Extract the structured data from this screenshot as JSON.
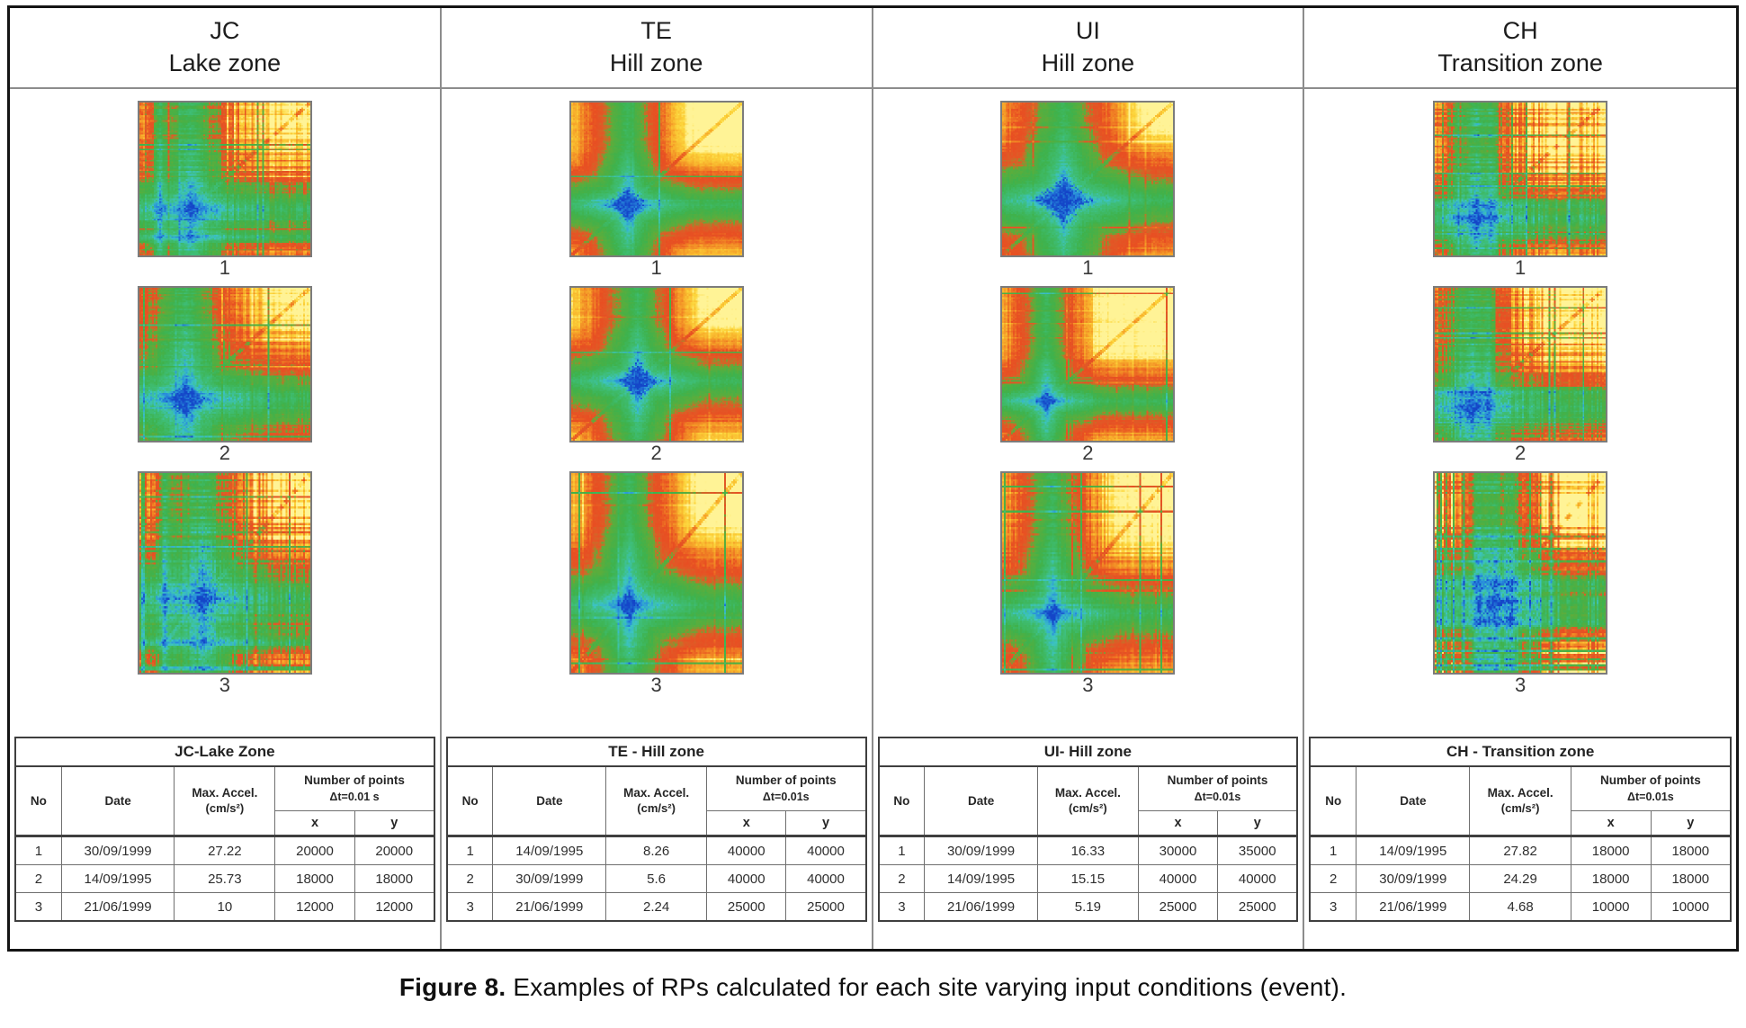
{
  "figure": {
    "caption_label": "Figure 8.",
    "caption_text": " Examples of RPs calculated for each site varying input conditions (event).",
    "columns": [
      {
        "code": "JC",
        "zone": "Lake zone",
        "plots": [
          {
            "label": "1",
            "c": 0.3,
            "w": 0.48,
            "blob": 0.05,
            "stripes": 0.55,
            "seed": 11,
            "events": [
              0.12
            ]
          },
          {
            "label": "2",
            "c": 0.27,
            "w": 0.55,
            "blob": 0.11,
            "stripes": 0.4,
            "seed": 12,
            "events": []
          },
          {
            "label": "3",
            "c": 0.37,
            "w": 0.5,
            "blob": 0.06,
            "stripes": 0.75,
            "seed": 13,
            "events": [
              0.15
            ]
          }
        ],
        "table": {
          "title": "JC-Lake Zone",
          "headers": {
            "no": "No",
            "date": "Date",
            "accel1": "Max. Accel.",
            "accel2": "(cm/s²)",
            "points1": "Number of points",
            "points2": "Δt=0.01 s",
            "x": "x",
            "y": "y"
          },
          "rows": [
            {
              "no": "1",
              "date": "30/09/1999",
              "accel": "27.22",
              "x": "20000",
              "y": "20000"
            },
            {
              "no": "2",
              "date": "14/09/1995",
              "accel": "25.73",
              "x": "18000",
              "y": "18000"
            },
            {
              "no": "3",
              "date": "21/06/1999",
              "accel": "10",
              "x": "12000",
              "y": "12000"
            }
          ]
        }
      },
      {
        "code": "TE",
        "zone": "Hill zone",
        "plots": [
          {
            "label": "1",
            "c": 0.33,
            "w": 0.4,
            "blob": 0.11,
            "stripes": 0.15,
            "seed": 21,
            "events": []
          },
          {
            "label": "2",
            "c": 0.39,
            "w": 0.42,
            "blob": 0.12,
            "stripes": 0.2,
            "seed": 22,
            "events": []
          },
          {
            "label": "3",
            "c": 0.34,
            "w": 0.42,
            "blob": 0.07,
            "stripes": 0.18,
            "seed": 23,
            "events": []
          }
        ],
        "table": {
          "title": "TE - Hill zone",
          "headers": {
            "no": "No",
            "date": "Date",
            "accel1": "Max. Accel.",
            "accel2": "(cm/s²)",
            "points1": "Number of points",
            "points2": "Δt=0.01s",
            "x": "x",
            "y": "y"
          },
          "rows": [
            {
              "no": "1",
              "date": "14/09/1995",
              "accel": "8.26",
              "x": "40000",
              "y": "40000"
            },
            {
              "no": "2",
              "date": "30/09/1999",
              "accel": "5.6",
              "x": "40000",
              "y": "40000"
            },
            {
              "no": "3",
              "date": "21/06/1999",
              "accel": "2.24",
              "x": "25000",
              "y": "25000"
            }
          ]
        }
      },
      {
        "code": "UI",
        "zone": "Hill zone",
        "plots": [
          {
            "label": "1",
            "c": 0.36,
            "w": 0.52,
            "blob": 0.15,
            "stripes": 0.18,
            "seed": 31,
            "events": []
          },
          {
            "label": "2",
            "c": 0.26,
            "w": 0.33,
            "blob": 0.06,
            "stripes": 0.22,
            "seed": 32,
            "events": []
          },
          {
            "label": "3",
            "c": 0.3,
            "w": 0.4,
            "blob": 0.06,
            "stripes": 0.28,
            "seed": 33,
            "events": []
          }
        ],
        "table": {
          "title": "UI- Hill zone",
          "headers": {
            "no": "No",
            "date": "Date",
            "accel1": "Max. Accel.",
            "accel2": "(cm/s²)",
            "points1": "Number of points",
            "points2": "Δt=0.01s",
            "x": "x",
            "y": "y"
          },
          "rows": [
            {
              "no": "1",
              "date": "30/09/1999",
              "accel": "16.33",
              "x": "30000",
              "y": "35000"
            },
            {
              "no": "2",
              "date": "14/09/1995",
              "accel": "15.15",
              "x": "40000",
              "y": "40000"
            },
            {
              "no": "3",
              "date": "21/06/1999",
              "accel": "5.19",
              "x": "25000",
              "y": "25000"
            }
          ]
        }
      },
      {
        "code": "CH",
        "zone": "Transition zone",
        "plots": [
          {
            "label": "1",
            "c": 0.24,
            "w": 0.42,
            "blob": 0.05,
            "stripes": 0.85,
            "seed": 41,
            "events": [
              0.33
            ]
          },
          {
            "label": "2",
            "c": 0.22,
            "w": 0.45,
            "blob": 0.06,
            "stripes": 0.7,
            "seed": 42,
            "events": [
              0.31
            ]
          },
          {
            "label": "3",
            "c": 0.35,
            "w": 0.48,
            "blob": 0.06,
            "stripes": 0.95,
            "seed": 43,
            "events": [
              0.26,
              0.45
            ]
          }
        ],
        "table": {
          "title": "CH - Transition zone",
          "headers": {
            "no": "No",
            "date": "Date",
            "accel1": "Max. Accel.",
            "accel2": "(cm/s²)",
            "points1": "Number of points",
            "points2": "Δt=0.01s",
            "x": "x",
            "y": "y"
          },
          "rows": [
            {
              "no": "1",
              "date": "14/09/1995",
              "accel": "27.82",
              "x": "18000",
              "y": "18000"
            },
            {
              "no": "2",
              "date": "30/09/1999",
              "accel": "24.29",
              "x": "18000",
              "y": "18000"
            },
            {
              "no": "3",
              "date": "21/06/1999",
              "accel": "4.68",
              "x": "10000",
              "y": "10000"
            }
          ]
        }
      }
    ]
  },
  "rp_colormap": [
    [
      0.0,
      "#1446c8"
    ],
    [
      0.045,
      "#288cdc"
    ],
    [
      0.1,
      "#3cc3c3"
    ],
    [
      0.17,
      "#3ebe78"
    ],
    [
      0.3,
      "#3eb24c"
    ],
    [
      0.44,
      "#5fac3a"
    ],
    [
      0.49,
      "#c86e28"
    ],
    [
      0.53,
      "#e25826"
    ],
    [
      0.62,
      "#e84e22"
    ],
    [
      0.72,
      "#f08224"
    ],
    [
      0.82,
      "#f8b22c"
    ],
    [
      0.91,
      "#fcd63c"
    ],
    [
      1.0,
      "#fff396"
    ]
  ]
}
